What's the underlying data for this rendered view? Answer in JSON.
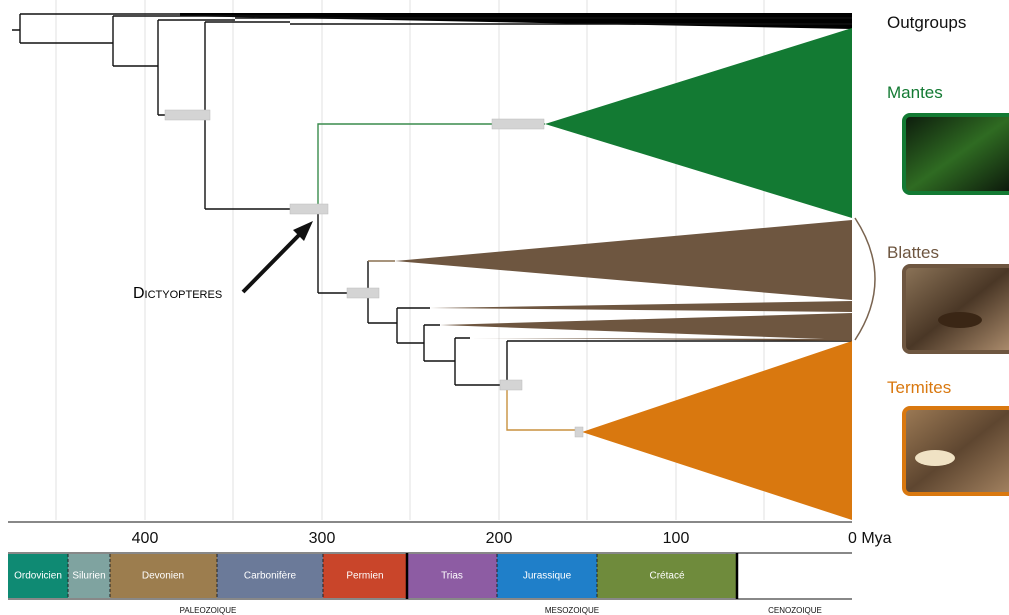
{
  "labels": {
    "outgroups": "Outgroups",
    "mantes": "Mantes",
    "blattes": "Blattes",
    "termites": "Termites",
    "annotation": "Dictyopteres"
  },
  "axis": {
    "ticks": [
      "400",
      "300",
      "200",
      "100",
      "0 Mya"
    ]
  },
  "periods": [
    "Ordovicien",
    "Silurien",
    "Devonien",
    "Carbonifère",
    "Permien",
    "Trias",
    "Jurassique",
    "Crétacé"
  ],
  "eras": [
    "PALEOZOIQUE",
    "MESOZOIQUE",
    "CENOZOIQUE"
  ]
}
